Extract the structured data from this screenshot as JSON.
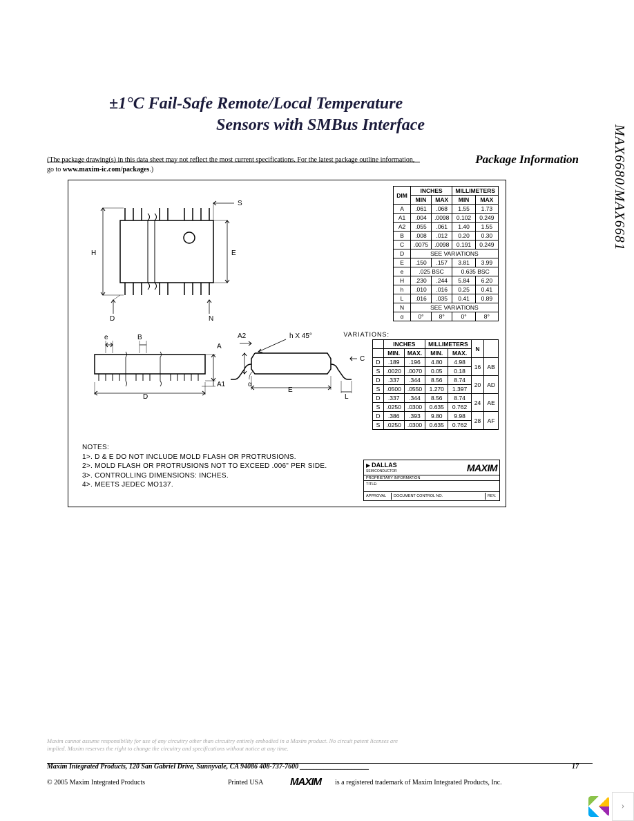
{
  "page": {
    "title_line1": "±1°C Fail-Safe Remote/Local Temperature",
    "title_line2": "Sensors with SMBus Interface",
    "section": "Package Information",
    "note_text": "(The package drawing(s) in this data sheet may not reflect the most current specifications. For the latest package outline information,",
    "note_text2": "go to ",
    "note_link": "www.maxim-ic.com/packages",
    "note_text3": ".)",
    "side_label": "MAX6680/MAX6681",
    "disclaimer1": "Maxim cannot assume responsibility for use of any circuitry other than circuitry entirely embodied in a Maxim product. No circuit patent licenses are",
    "disclaimer2": "implied. Maxim reserves the right to change the circuitry and specifications without notice at any time.",
    "footer_addr": "Maxim Integrated Products, 120 San Gabriel Drive, Sunnyvale, CA  94086 408-737-7600 ____________________",
    "page_num": "17",
    "copyright": "© 2005 Maxim Integrated Products",
    "printed": "Printed USA",
    "maxim_logo": "MAXIM",
    "trademark": "is a registered trademark of Maxim Integrated Products, Inc."
  },
  "drawing": {
    "dim_S": "S",
    "dim_H": "H",
    "dim_E": "E",
    "dim_N": "N",
    "dim_D": "D",
    "dim_e": "e",
    "dim_B": "B",
    "dim_A": "A",
    "dim_A1": "A1",
    "dim_A2": "A2",
    "dim_h": "h X 45°",
    "dim_C": "C",
    "dim_alpha": "α",
    "dim_L": "L",
    "notes_title": "NOTES:",
    "note1": "1>. D & E DO NOT INCLUDE MOLD FLASH OR PROTRUSIONS.",
    "note2": "2>. MOLD FLASH OR PROTRUSIONS NOT TO EXCEED .006\" PER SIDE.",
    "note3": "3>. CONTROLLING DIMENSIONS: INCHES.",
    "note4": "4>. MEETS JEDEC MO137.",
    "var_label": "VARIATIONS:",
    "tb_dallas": "DALLAS",
    "tb_semi": "SEMICONDUCTOR",
    "tb_prop": "PROPRIETARY INFORMATION",
    "tb_title": "TITLE:",
    "tb_approval": "APPROVAL",
    "tb_doc": "DOCUMENT CONTROL NO.",
    "tb_rev": "REV."
  },
  "dim_table": {
    "h_inches": "INCHES",
    "h_mm": "MILLIMETERS",
    "h_dim": "DIM",
    "h_min": "MIN",
    "h_max": "MAX",
    "rows": [
      [
        "A",
        ".061",
        ".068",
        "1.55",
        "1.73"
      ],
      [
        "A1",
        ".004",
        ".0098",
        "0.102",
        "0.249"
      ],
      [
        "A2",
        ".055",
        ".061",
        "1.40",
        "1.55"
      ],
      [
        "B",
        ".008",
        ".012",
        "0.20",
        "0.30"
      ],
      [
        "C",
        ".0075",
        ".0098",
        "0.191",
        "0.249"
      ]
    ],
    "d_row": [
      "D",
      "SEE VARIATIONS"
    ],
    "e_row": [
      "E",
      ".150",
      ".157",
      "3.81",
      "3.99"
    ],
    "ee_row": [
      "e",
      ".025 BSC",
      "0.635 BSC"
    ],
    "h_row": [
      "H",
      ".230",
      ".244",
      "5.84",
      "6.20"
    ],
    "hh_row": [
      "h",
      ".010",
      ".016",
      "0.25",
      "0.41"
    ],
    "l_row": [
      "L",
      ".016",
      ".035",
      "0.41",
      "0.89"
    ],
    "n_row": [
      "N",
      "SEE VARIATIONS"
    ],
    "a_row": [
      "α",
      "0°",
      "8°",
      "0°",
      "8°"
    ]
  },
  "var_table": {
    "h_inches": "INCHES",
    "h_mm": "MILLIMETERS",
    "h_min": "MIN.",
    "h_max": "MAX.",
    "h_n": "N",
    "rows": [
      [
        "D",
        ".189",
        ".196",
        "4.80",
        "4.98",
        "16",
        "AB"
      ],
      [
        "S",
        ".0020",
        ".0070",
        "0.05",
        "0.18",
        "",
        ""
      ],
      [
        "D",
        ".337",
        ".344",
        "8.56",
        "8.74",
        "20",
        "AD"
      ],
      [
        "S",
        ".0500",
        ".0550",
        "1.270",
        "1.397",
        "",
        ""
      ],
      [
        "D",
        ".337",
        ".344",
        "8.56",
        "8.74",
        "24",
        "AE"
      ],
      [
        "S",
        ".0250",
        ".0300",
        "0.635",
        "0.762",
        "",
        ""
      ],
      [
        "D",
        ".386",
        ".393",
        "9.80",
        "9.98",
        "28",
        "AF"
      ],
      [
        "S",
        ".0250",
        ".0300",
        "0.635",
        "0.762",
        "",
        ""
      ]
    ]
  },
  "colors": {
    "title": "#1a1a3a",
    "text": "#000000",
    "disclaimer": "#aaaaaa",
    "border": "#dddddd"
  }
}
